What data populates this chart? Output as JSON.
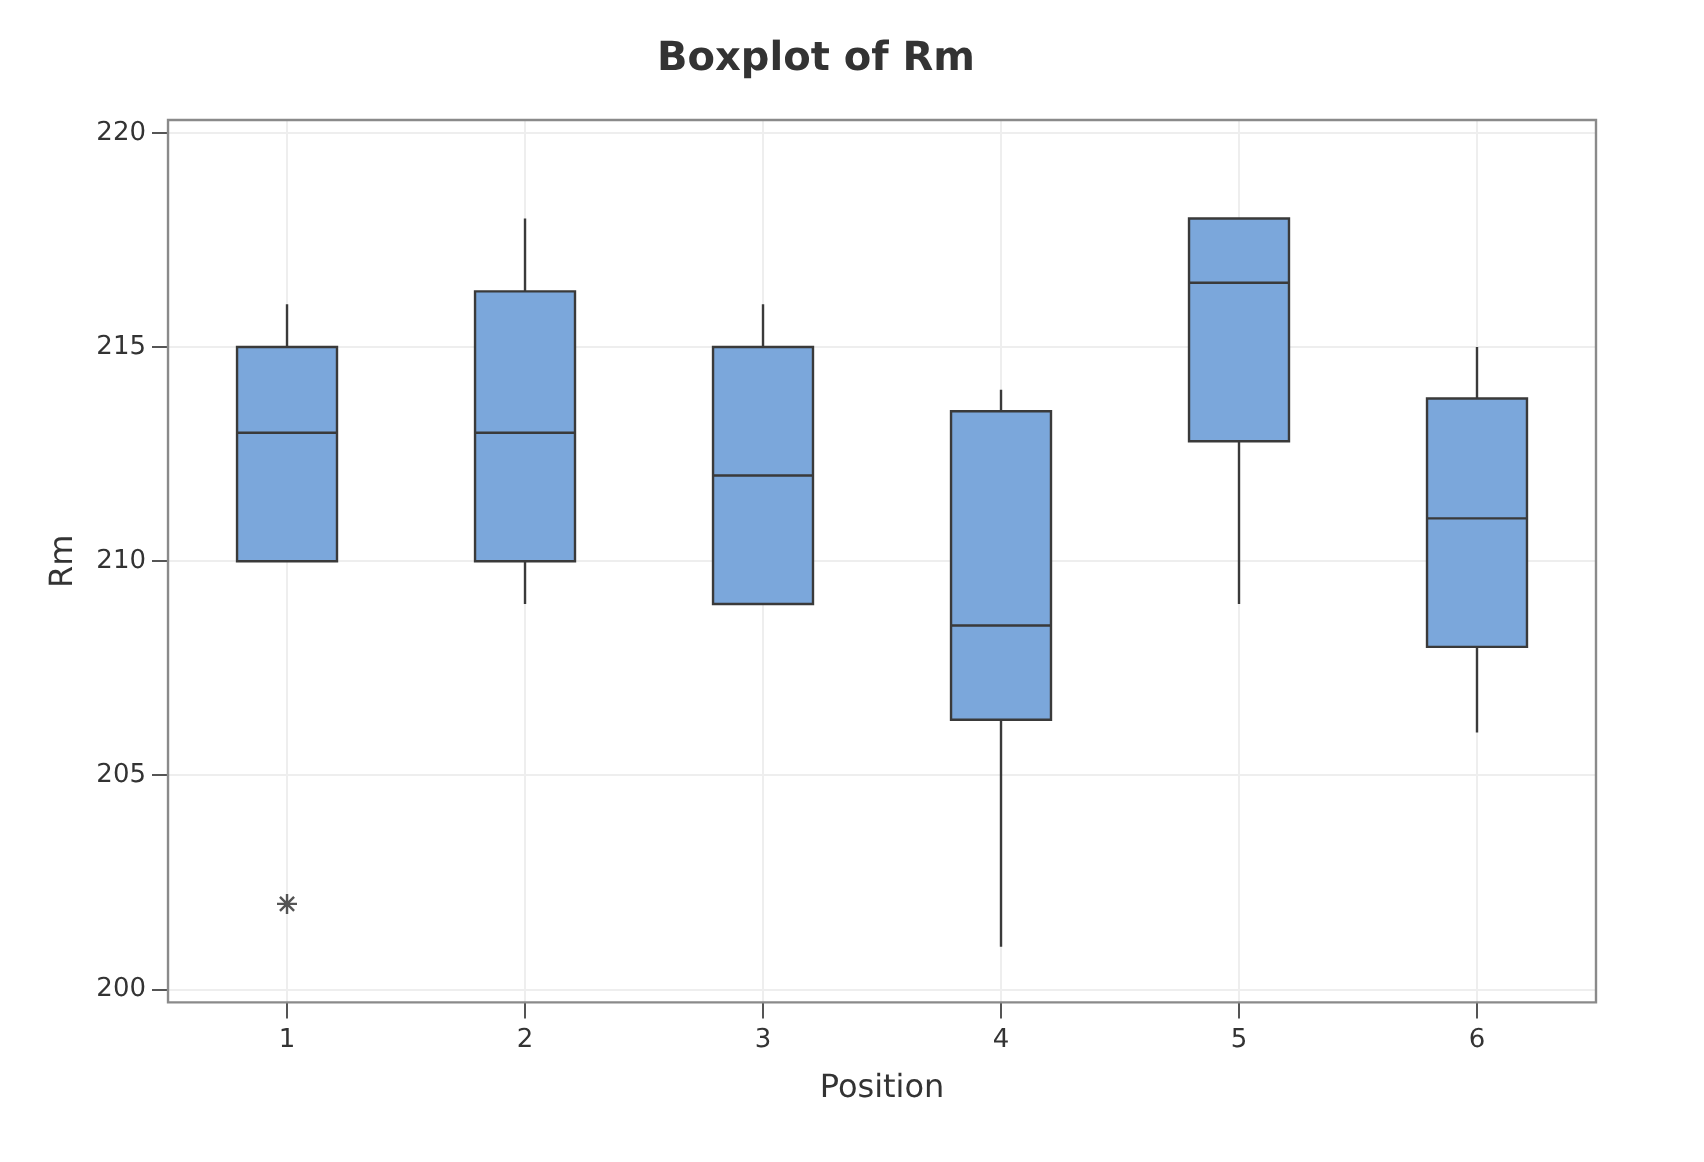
{
  "chart_data": {
    "type": "box",
    "title": "Boxplot of Rm",
    "xlabel": "Position",
    "ylabel": "Rm",
    "categories": [
      "1",
      "2",
      "3",
      "4",
      "5",
      "6"
    ],
    "color": "#7ba7db",
    "boxes": [
      {
        "low": 210,
        "q1": 210,
        "median": 213,
        "q3": 215,
        "high": 216,
        "outliers": [
          202
        ]
      },
      {
        "low": 209,
        "q1": 210,
        "median": 213,
        "q3": 216.3,
        "high": 218
      },
      {
        "low": 209,
        "q1": 209,
        "median": 212,
        "q3": 215,
        "high": 216
      },
      {
        "low": 201,
        "q1": 206.3,
        "median": 208.5,
        "q3": 213.5,
        "high": 214
      },
      {
        "low": 209,
        "q1": 212.8,
        "median": 216.5,
        "q3": 218,
        "high": 218
      },
      {
        "low": 206,
        "q1": 208,
        "median": 211,
        "q3": 213.8,
        "high": 215
      }
    ],
    "ylim": [
      199.7,
      220.3
    ],
    "yticks": [
      200,
      205,
      210,
      215,
      220
    ],
    "grid": true,
    "legend": false
  }
}
